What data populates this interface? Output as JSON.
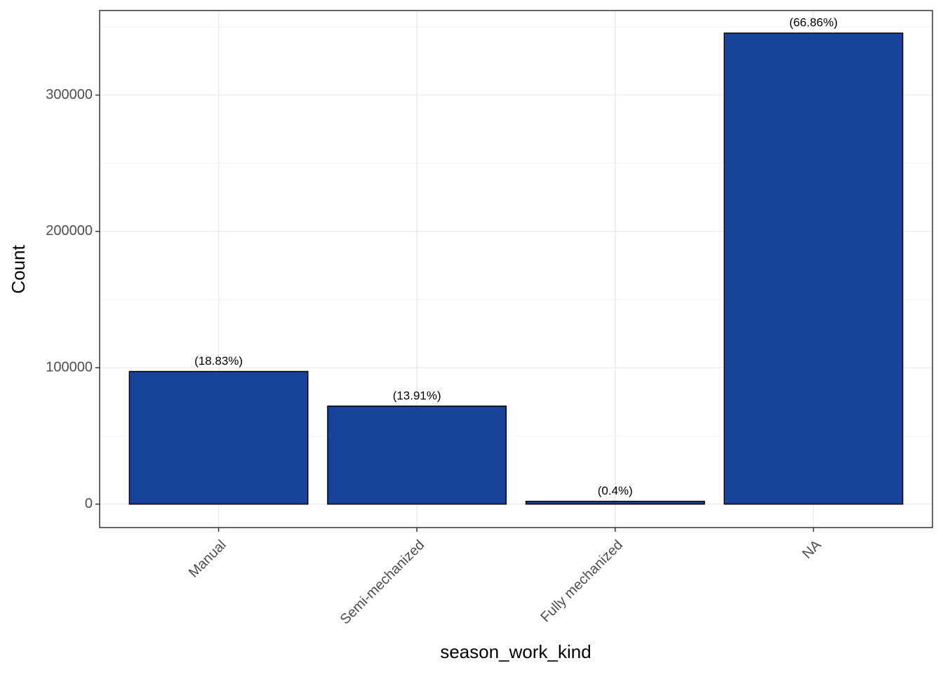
{
  "chart_data": {
    "type": "bar",
    "x_label": "season_work_kind",
    "y_label": "Count",
    "categories": [
      "Manual",
      "Semi-mechanized",
      "Fully mechanized",
      "NA"
    ],
    "values": [
      97285,
      71866,
      2067,
      345430
    ],
    "percent_labels": [
      "(18.83%)",
      "(13.91%)",
      "(0.4%)",
      "(66.86%)"
    ],
    "color": "#17439a",
    "ylim": [
      -17200,
      362000
    ],
    "yticks": [
      0,
      100000,
      200000,
      300000
    ],
    "minor_yticks": [
      50000,
      150000,
      250000,
      350000
    ],
    "grid": true
  }
}
